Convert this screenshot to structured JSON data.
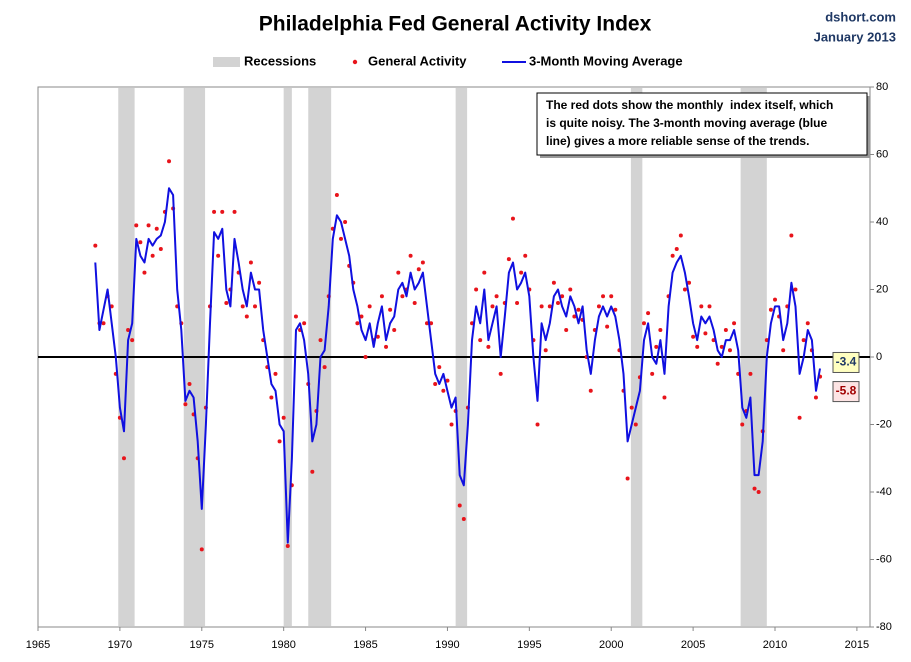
{
  "chart_data": {
    "type": "scatter_line",
    "title": "Philadelphia Fed General Activity Index",
    "source": "dshort.com",
    "date": "January 2013",
    "annotation": [
      "The red dots show the monthly  index itself, which",
      "is quite noisy. The 3-month moving average (blue",
      "line) gives a more reliable sense of the trends."
    ],
    "recessions": {
      "name": "Recessions",
      "color": "#d3d3d3",
      "ranges": [
        [
          1969.9,
          1970.9
        ],
        [
          1973.9,
          1975.2
        ],
        [
          1980.0,
          1980.5
        ],
        [
          1981.5,
          1982.9
        ],
        [
          1990.5,
          1991.2
        ],
        [
          2001.2,
          2001.9
        ],
        [
          2007.9,
          2009.5
        ]
      ]
    },
    "x": [
      1968.5,
      1968.75,
      1969,
      1969.25,
      1969.5,
      1969.75,
      1970,
      1970.25,
      1970.5,
      1970.75,
      1971,
      1971.25,
      1971.5,
      1971.75,
      1972,
      1972.25,
      1972.5,
      1972.75,
      1973,
      1973.25,
      1973.5,
      1973.75,
      1974,
      1974.25,
      1974.5,
      1974.75,
      1975,
      1975.25,
      1975.5,
      1975.75,
      1976,
      1976.25,
      1976.5,
      1976.75,
      1977,
      1977.25,
      1977.5,
      1977.75,
      1978,
      1978.25,
      1978.5,
      1978.75,
      1979,
      1979.25,
      1979.5,
      1979.75,
      1980,
      1980.25,
      1980.5,
      1980.75,
      1981,
      1981.25,
      1981.5,
      1981.75,
      1982,
      1982.25,
      1982.5,
      1982.75,
      1983,
      1983.25,
      1983.5,
      1983.75,
      1984,
      1984.25,
      1984.5,
      1984.75,
      1985,
      1985.25,
      1985.5,
      1985.75,
      1986,
      1986.25,
      1986.5,
      1986.75,
      1987,
      1987.25,
      1987.5,
      1987.75,
      1988,
      1988.25,
      1988.5,
      1988.75,
      1989,
      1989.25,
      1989.5,
      1989.75,
      1990,
      1990.25,
      1990.5,
      1990.75,
      1991,
      1991.25,
      1991.5,
      1991.75,
      1992,
      1992.25,
      1992.5,
      1992.75,
      1993,
      1993.25,
      1993.5,
      1993.75,
      1994,
      1994.25,
      1994.5,
      1994.75,
      1995,
      1995.25,
      1995.5,
      1995.75,
      1996,
      1996.25,
      1996.5,
      1996.75,
      1997,
      1997.25,
      1997.5,
      1997.75,
      1998,
      1998.25,
      1998.5,
      1998.75,
      1999,
      1999.25,
      1999.5,
      1999.75,
      2000,
      2000.25,
      2000.5,
      2000.75,
      2001,
      2001.25,
      2001.5,
      2001.75,
      2002,
      2002.25,
      2002.5,
      2002.75,
      2003,
      2003.25,
      2003.5,
      2003.75,
      2004,
      2004.25,
      2004.5,
      2004.75,
      2005,
      2005.25,
      2005.5,
      2005.75,
      2006,
      2006.25,
      2006.5,
      2006.75,
      2007,
      2007.25,
      2007.5,
      2007.75,
      2008,
      2008.25,
      2008.5,
      2008.75,
      2009,
      2009.25,
      2009.5,
      2009.75,
      2010,
      2010.25,
      2010.5,
      2010.75,
      2011,
      2011.25,
      2011.5,
      2011.75,
      2012,
      2012.25,
      2012.5,
      2012.75
    ],
    "series": [
      {
        "name": "General Activity",
        "color": "#e8141b",
        "kind": "dots",
        "values": [
          33,
          10,
          10,
          18,
          15,
          -5,
          -18,
          -30,
          8,
          5,
          39,
          34,
          25,
          39,
          30,
          38,
          32,
          43,
          58,
          44,
          15,
          10,
          -14,
          -8,
          -17,
          -30,
          -57,
          -15,
          15,
          43,
          30,
          43,
          16,
          20,
          43,
          25,
          15,
          12,
          28,
          15,
          22,
          5,
          -3,
          -12,
          -5,
          -25,
          -18,
          -56,
          -38,
          12,
          8,
          10,
          -8,
          -34,
          -16,
          5,
          -3,
          18,
          38,
          48,
          35,
          40,
          27,
          22,
          10,
          12,
          0,
          15,
          5,
          6,
          18,
          3,
          14,
          8,
          25,
          18,
          20,
          30,
          16,
          26,
          28,
          10,
          10,
          -8,
          -3,
          -10,
          -7,
          -20,
          -16,
          -44,
          -48,
          -15,
          10,
          20,
          5,
          25,
          3,
          15,
          18,
          -5,
          16,
          29,
          41,
          16,
          25,
          30,
          20,
          5,
          -20,
          15,
          2,
          15,
          22,
          16,
          18,
          8,
          20,
          12,
          14,
          11,
          0,
          -10,
          8,
          15,
          18,
          9,
          18,
          14,
          2,
          -10,
          -36,
          -15,
          -20,
          -6,
          10,
          13,
          -5,
          3,
          8,
          -12,
          18,
          30,
          32,
          36,
          20,
          22,
          6,
          3,
          15,
          7,
          15,
          5,
          -2,
          3,
          8,
          2,
          10,
          -5,
          -20,
          -16,
          -5,
          -39,
          -40,
          -22,
          5,
          14,
          17,
          12,
          2,
          15,
          36,
          20,
          -18,
          5,
          10,
          2,
          -12,
          -5.8
        ]
      },
      {
        "name": "3-Month Moving Average",
        "color": "#1010e0",
        "kind": "line",
        "values": [
          28,
          8,
          14,
          20,
          10,
          0,
          -15,
          -22,
          5,
          10,
          35,
          30,
          28,
          35,
          33,
          35,
          36,
          40,
          50,
          48,
          20,
          8,
          -13,
          -10,
          -12,
          -25,
          -45,
          -20,
          10,
          37,
          35,
          38,
          20,
          15,
          35,
          28,
          20,
          15,
          25,
          20,
          20,
          8,
          0,
          -8,
          -10,
          -20,
          -22,
          -55,
          -30,
          8,
          10,
          5,
          -5,
          -25,
          -20,
          0,
          2,
          15,
          35,
          42,
          40,
          35,
          30,
          20,
          15,
          8,
          5,
          10,
          3,
          10,
          15,
          5,
          10,
          12,
          20,
          22,
          18,
          25,
          20,
          22,
          25,
          15,
          5,
          -5,
          -8,
          -5,
          -10,
          -15,
          -12,
          -35,
          -38,
          -20,
          5,
          15,
          10,
          20,
          5,
          10,
          15,
          0,
          12,
          25,
          28,
          20,
          22,
          25,
          18,
          0,
          -13,
          10,
          5,
          10,
          18,
          20,
          15,
          12,
          18,
          15,
          10,
          15,
          2,
          -5,
          5,
          12,
          15,
          12,
          15,
          12,
          5,
          -5,
          -25,
          -20,
          -15,
          -10,
          5,
          10,
          0,
          -2,
          5,
          -5,
          15,
          25,
          28,
          30,
          25,
          18,
          10,
          5,
          12,
          10,
          12,
          8,
          2,
          0,
          5,
          5,
          8,
          2,
          -15,
          -18,
          -12,
          -35,
          -35,
          -25,
          0,
          10,
          15,
          15,
          5,
          10,
          22,
          15,
          -5,
          0,
          8,
          5,
          -10,
          -3.4
        ]
      }
    ],
    "xlim": [
      1965,
      2015.8
    ],
    "xticks": [
      1965,
      1970,
      1975,
      1980,
      1985,
      1990,
      1995,
      2000,
      2005,
      2010,
      2015
    ],
    "ylim": [
      -80,
      80
    ],
    "yticks": [
      80,
      60,
      40,
      20,
      0,
      -20,
      -40,
      -60,
      -80
    ],
    "zero_line": true
  }
}
